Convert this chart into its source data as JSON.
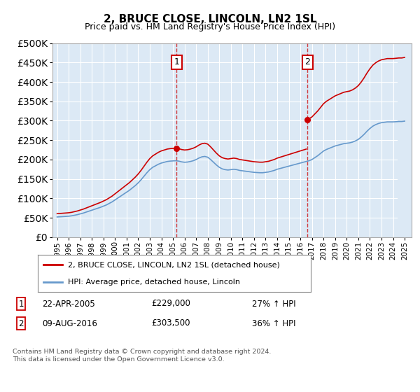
{
  "title": "2, BRUCE CLOSE, LINCOLN, LN2 1SL",
  "subtitle": "Price paid vs. HM Land Registry's House Price Index (HPI)",
  "background_color": "#ffffff",
  "plot_bg_color": "#dce9f5",
  "grid_color": "#ffffff",
  "line1_color": "#cc0000",
  "line2_color": "#6699cc",
  "sale1_x": 2005.31,
  "sale1_y": 229000,
  "sale2_x": 2016.61,
  "sale2_y": 303500,
  "sale1_label": "22-APR-2005",
  "sale1_price": "£229,000",
  "sale1_hpi": "27% ↑ HPI",
  "sale2_label": "09-AUG-2016",
  "sale2_price": "£303,500",
  "sale2_hpi": "36% ↑ HPI",
  "legend1": "2, BRUCE CLOSE, LINCOLN, LN2 1SL (detached house)",
  "legend2": "HPI: Average price, detached house, Lincoln",
  "footnote": "Contains HM Land Registry data © Crown copyright and database right 2024.\nThis data is licensed under the Open Government Licence v3.0.",
  "ylim": [
    0,
    500000
  ],
  "xlim_start": 1994.6,
  "xlim_end": 2025.6,
  "hpi_years": [
    1995.0,
    1995.25,
    1995.5,
    1995.75,
    1996.0,
    1996.25,
    1996.5,
    1996.75,
    1997.0,
    1997.25,
    1997.5,
    1997.75,
    1998.0,
    1998.25,
    1998.5,
    1998.75,
    1999.0,
    1999.25,
    1999.5,
    1999.75,
    2000.0,
    2000.25,
    2000.5,
    2000.75,
    2001.0,
    2001.25,
    2001.5,
    2001.75,
    2002.0,
    2002.25,
    2002.5,
    2002.75,
    2003.0,
    2003.25,
    2003.5,
    2003.75,
    2004.0,
    2004.25,
    2004.5,
    2004.75,
    2005.0,
    2005.25,
    2005.5,
    2005.75,
    2006.0,
    2006.25,
    2006.5,
    2006.75,
    2007.0,
    2007.25,
    2007.5,
    2007.75,
    2008.0,
    2008.25,
    2008.5,
    2008.75,
    2009.0,
    2009.25,
    2009.5,
    2009.75,
    2010.0,
    2010.25,
    2010.5,
    2010.75,
    2011.0,
    2011.25,
    2011.5,
    2011.75,
    2012.0,
    2012.25,
    2012.5,
    2012.75,
    2013.0,
    2013.25,
    2013.5,
    2013.75,
    2014.0,
    2014.25,
    2014.5,
    2014.75,
    2015.0,
    2015.25,
    2015.5,
    2015.75,
    2016.0,
    2016.25,
    2016.5,
    2016.75,
    2017.0,
    2017.25,
    2017.5,
    2017.75,
    2018.0,
    2018.25,
    2018.5,
    2018.75,
    2019.0,
    2019.25,
    2019.5,
    2019.75,
    2020.0,
    2020.25,
    2020.5,
    2020.75,
    2021.0,
    2021.25,
    2021.5,
    2021.75,
    2022.0,
    2022.25,
    2022.5,
    2022.75,
    2023.0,
    2023.25,
    2023.5,
    2023.75,
    2024.0,
    2024.25,
    2024.5,
    2024.75,
    2025.0
  ],
  "hpi_values": [
    52000,
    52500,
    53000,
    53500,
    54000,
    55000,
    56500,
    58000,
    60000,
    62000,
    64500,
    67000,
    69500,
    72000,
    74500,
    77000,
    80000,
    83000,
    87000,
    91000,
    96000,
    101000,
    106000,
    111000,
    116000,
    121000,
    127000,
    133000,
    140000,
    148000,
    157000,
    166000,
    174000,
    180000,
    184000,
    188000,
    191000,
    193000,
    195000,
    196000,
    196500,
    197000,
    196000,
    194000,
    193000,
    193500,
    195000,
    197000,
    200000,
    204000,
    207000,
    208000,
    206000,
    200000,
    193000,
    186000,
    180000,
    176000,
    174000,
    173000,
    174000,
    175000,
    174000,
    172000,
    171000,
    170000,
    169000,
    168000,
    167000,
    166500,
    166000,
    166000,
    167000,
    168000,
    170000,
    172000,
    175000,
    177000,
    179000,
    181000,
    183000,
    185000,
    187000,
    189000,
    191000,
    193000,
    195000,
    197000,
    200000,
    205000,
    210000,
    216000,
    222000,
    226000,
    229000,
    232000,
    235000,
    237000,
    239000,
    241000,
    242000,
    243000,
    245000,
    248000,
    252000,
    258000,
    265000,
    273000,
    280000,
    286000,
    290000,
    293000,
    295000,
    296000,
    297000,
    297000,
    297000,
    297500,
    298000,
    298000,
    299000
  ]
}
